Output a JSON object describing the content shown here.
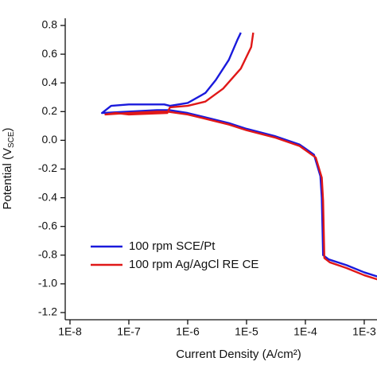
{
  "chart_data": {
    "type": "line",
    "x_label": "Current Density (A/cm²)",
    "y_label": {
      "text": "Potential (V",
      "subscript": "SCE",
      "suffix": ")"
    },
    "xscale": "log",
    "xlim": [
      8.3e-09,
      0.0017
    ],
    "ylim": [
      -1.25,
      0.85
    ],
    "xticks": [
      {
        "value": 1e-08,
        "label": "1E-8"
      },
      {
        "value": 1e-07,
        "label": "1E-7"
      },
      {
        "value": 1e-06,
        "label": "1E-6"
      },
      {
        "value": 1e-05,
        "label": "1E-5"
      },
      {
        "value": 0.0001,
        "label": "1E-4"
      },
      {
        "value": 0.001,
        "label": "1E-3"
      }
    ],
    "yticks": [
      0.8,
      0.6,
      0.4,
      0.2,
      {
        "value": 0,
        "label": "0.0"
      },
      -0.2,
      -0.4,
      -0.6,
      -0.8,
      {
        "value": -1,
        "label": "-1.0"
      },
      -1.2
    ],
    "legend": "lower left",
    "series": [
      {
        "name": "100 rpm SCE/Pt",
        "color": "#1a1adc",
        "x": [
          8e-06,
          7e-06,
          5e-06,
          3e-06,
          2e-06,
          1e-06,
          5e-07,
          4e-07,
          1e-07,
          5e-08,
          3.5e-08,
          1e-07,
          3e-07,
          5e-07,
          1e-06,
          2e-06,
          5e-06,
          1e-05,
          3e-05,
          8e-05,
          0.00014,
          0.00018,
          0.00019,
          0.000195,
          0.0002,
          0.00025,
          0.0005,
          0.001,
          0.0017
        ],
        "values": [
          0.75,
          0.7,
          0.56,
          0.42,
          0.33,
          0.26,
          0.24,
          0.25,
          0.25,
          0.24,
          0.19,
          0.2,
          0.21,
          0.21,
          0.19,
          0.16,
          0.12,
          0.08,
          0.03,
          -0.03,
          -0.1,
          -0.25,
          -0.4,
          -0.6,
          -0.8,
          -0.83,
          -0.87,
          -0.92,
          -0.95
        ]
      },
      {
        "name": "100 rpm Ag/AgCl RE CE",
        "color": "#e01818",
        "x": [
          1.3e-05,
          1.2e-05,
          8e-06,
          4e-06,
          2e-06,
          1e-06,
          5e-07,
          4.5e-07,
          1e-07,
          6e-08,
          4e-08,
          1e-07,
          3e-07,
          4.5e-07,
          1e-06,
          2e-06,
          5e-06,
          1e-05,
          3e-05,
          8e-05,
          0.00015,
          0.00019,
          0.0002,
          0.000205,
          0.00021,
          0.00026,
          0.0005,
          0.001,
          0.0017
        ],
        "values": [
          0.75,
          0.65,
          0.5,
          0.36,
          0.27,
          0.24,
          0.23,
          0.19,
          0.18,
          0.19,
          0.18,
          0.19,
          0.2,
          0.2,
          0.18,
          0.15,
          0.11,
          0.07,
          0.02,
          -0.04,
          -0.12,
          -0.26,
          -0.42,
          -0.62,
          -0.82,
          -0.85,
          -0.89,
          -0.94,
          -0.97
        ]
      }
    ]
  }
}
